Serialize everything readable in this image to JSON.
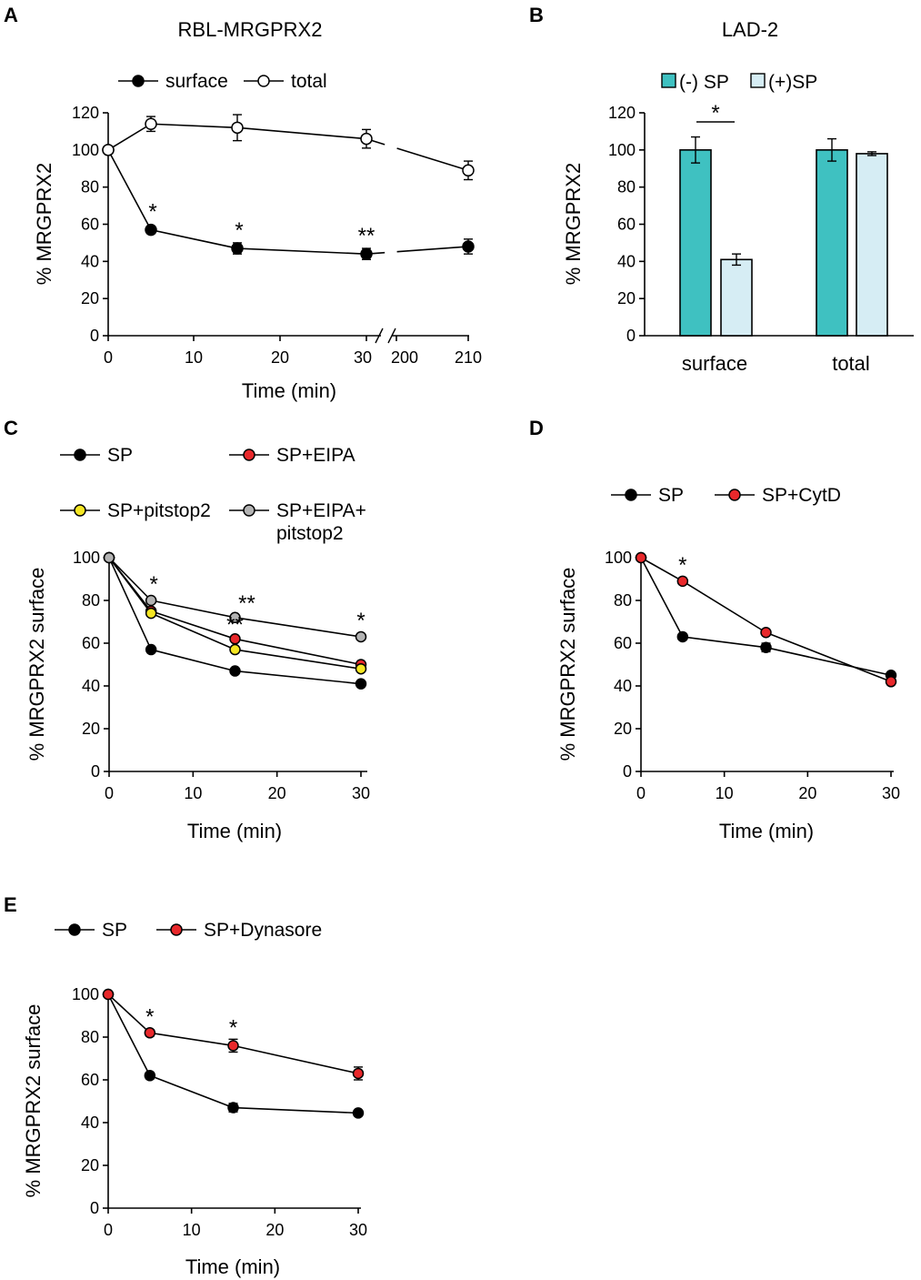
{
  "chart_data": [
    {
      "panel": "A",
      "type": "line",
      "title": "RBL-MRGPRX2",
      "xlabel": "Time (min)",
      "ylabel": "% MRGPRX2",
      "ylim": [
        0,
        120
      ],
      "yticks": [
        0,
        20,
        40,
        60,
        80,
        100,
        120
      ],
      "xticks": [
        "0",
        "10",
        "20",
        "30",
        "200",
        "210"
      ],
      "axis_break": "between 30 and 200",
      "series": [
        {
          "name": "surface",
          "marker": "filled-black",
          "x": [
            0,
            5,
            15,
            30,
            210
          ],
          "y": [
            100,
            57,
            47,
            44,
            48
          ],
          "err": [
            0,
            2,
            3,
            3,
            4
          ]
        },
        {
          "name": "total",
          "marker": "open-white",
          "x": [
            0,
            5,
            15,
            30,
            210
          ],
          "y": [
            100,
            114,
            112,
            106,
            89
          ],
          "err": [
            0,
            4,
            7,
            5,
            5
          ]
        }
      ],
      "annotations": [
        {
          "text": "*",
          "series": "surface",
          "x": 5
        },
        {
          "text": "*",
          "series": "surface",
          "x": 15
        },
        {
          "text": "**",
          "series": "surface",
          "x": 30
        }
      ]
    },
    {
      "panel": "B",
      "type": "bar",
      "title": "LAD-2",
      "xlabel": "",
      "ylabel": "% MRGPRX2",
      "ylim": [
        0,
        120
      ],
      "yticks": [
        0,
        20,
        40,
        60,
        80,
        100,
        120
      ],
      "categories": [
        "surface",
        "total"
      ],
      "series": [
        {
          "name": "(-) SP",
          "color": "#3fc1c1",
          "values": [
            100,
            100
          ],
          "err": [
            7,
            6
          ]
        },
        {
          "name": "(+)SP",
          "color": "#d6edf4",
          "values": [
            41,
            98
          ],
          "err": [
            3,
            1
          ]
        }
      ],
      "annotations": [
        {
          "text": "*",
          "between": "surface (-) SP and surface (+)SP"
        }
      ]
    },
    {
      "panel": "C",
      "type": "line",
      "title": "",
      "xlabel": "Time (min)",
      "ylabel": "% MRGPRX2 surface",
      "ylim": [
        0,
        100
      ],
      "yticks": [
        0,
        20,
        40,
        60,
        80,
        100
      ],
      "xticks": [
        0,
        10,
        20,
        30
      ],
      "series": [
        {
          "name": "SP",
          "color": "#000000",
          "x": [
            0,
            5,
            15,
            30
          ],
          "y": [
            100,
            57,
            47,
            41
          ]
        },
        {
          "name": "SP+EIPA",
          "color": "#e8282b",
          "x": [
            0,
            5,
            15,
            30
          ],
          "y": [
            100,
            75,
            62,
            50
          ]
        },
        {
          "name": "SP+pitstop2",
          "color": "#f5e623",
          "x": [
            0,
            5,
            15,
            30
          ],
          "y": [
            100,
            74,
            57,
            48
          ]
        },
        {
          "name": "SP+EIPA+",
          "name_line2": "pitstop2",
          "color": "#b3b3b3",
          "x": [
            0,
            5,
            15,
            30
          ],
          "y": [
            100,
            80,
            72,
            63
          ]
        }
      ],
      "annotations": [
        {
          "text": "*",
          "x": 5
        },
        {
          "text": "**",
          "x": 15,
          "series": "SP+EIPA+pitstop2"
        },
        {
          "text": "**",
          "x": 15,
          "series": "SP+EIPA"
        },
        {
          "text": "*",
          "x": 30
        }
      ]
    },
    {
      "panel": "D",
      "type": "line",
      "title": "",
      "xlabel": "Time (min)",
      "ylabel": "% MRGPRX2 surface",
      "ylim": [
        0,
        100
      ],
      "yticks": [
        0,
        20,
        40,
        60,
        80,
        100
      ],
      "xticks": [
        0,
        10,
        20,
        30
      ],
      "series": [
        {
          "name": "SP",
          "color": "#000000",
          "x": [
            0,
            5,
            15,
            30
          ],
          "y": [
            100,
            63,
            58,
            45
          ],
          "err": [
            0,
            1,
            2,
            1
          ]
        },
        {
          "name": "SP+CytD",
          "color": "#e8282b",
          "x": [
            0,
            5,
            15,
            30
          ],
          "y": [
            100,
            89,
            65,
            42
          ],
          "err": [
            0,
            1,
            1,
            1
          ]
        }
      ],
      "annotations": [
        {
          "text": "*",
          "x": 5
        }
      ]
    },
    {
      "panel": "E",
      "type": "line",
      "title": "",
      "xlabel": "Time (min)",
      "ylabel": "% MRGPRX2 surface",
      "ylim": [
        0,
        100
      ],
      "yticks": [
        0,
        20,
        40,
        60,
        80,
        100
      ],
      "xticks": [
        0,
        10,
        20,
        30
      ],
      "series": [
        {
          "name": "SP",
          "color": "#000000",
          "x": [
            0,
            5,
            15,
            30
          ],
          "y": [
            100,
            62,
            47,
            44.5
          ],
          "err": [
            0,
            1.5,
            2,
            1
          ]
        },
        {
          "name": "SP+Dynasore",
          "color": "#e8282b",
          "x": [
            0,
            5,
            15,
            30
          ],
          "y": [
            100,
            82,
            76,
            63
          ],
          "err": [
            0,
            1.5,
            3,
            3
          ]
        }
      ],
      "annotations": [
        {
          "text": "*",
          "x": 5
        },
        {
          "text": "*",
          "x": 15
        }
      ]
    }
  ]
}
